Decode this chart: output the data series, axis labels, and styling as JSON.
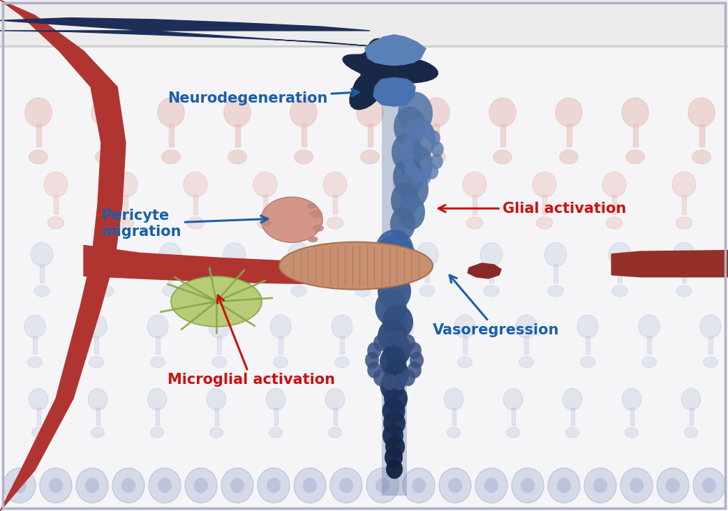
{
  "labels": {
    "neurodegeneration": "Neurodegeneration",
    "pericyte": "Pericyte\nmigration",
    "glial": "Glial activation",
    "microglial": "Microglial activation",
    "vasoregression": "Vasoregression"
  },
  "label_colors": {
    "neurodegeneration": "#1a5fa8",
    "pericyte": "#1a5fa8",
    "glial": "#cc1111",
    "microglial": "#cc1111",
    "vasoregression": "#1a5fa8"
  },
  "colors": {
    "background": "#f5f5f8",
    "top_strip_bg": "#efefef",
    "blood_vessel_red": "#b03530",
    "blood_vessel_dark": "#943028",
    "neural_dark_blue": "#1e2e58",
    "neural_mid_blue": "#3a5a90",
    "neural_light_blue": "#5a80b8",
    "neural_pale_blue": "#7aa0cc",
    "pericyte_color": "#d4958a",
    "mito_color": "#c89070",
    "mito_edge": "#a87050",
    "microglial_color": "#b8cc78",
    "microglial_edge": "#88a848",
    "small_frag": "#8a2828",
    "synapse_pink": "#e8c0b8",
    "synapse_blue": "#c0cce0",
    "cell_bottom": "#c0c8e0",
    "border_color": "#b0b0c8"
  },
  "fontsize_label": 14
}
